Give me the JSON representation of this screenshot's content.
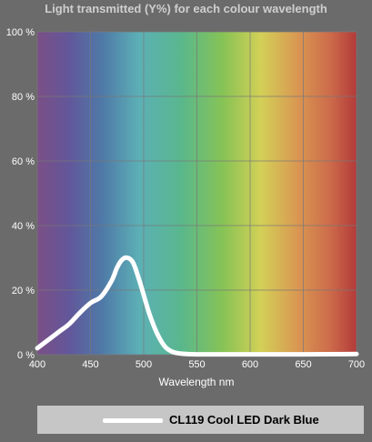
{
  "chart_data": {
    "type": "line",
    "title": "Light transmitted (Y%) for each colour wavelength",
    "xlabel": "Wavelength nm",
    "ylabel": "",
    "xlim": [
      400,
      700
    ],
    "ylim": [
      0,
      100
    ],
    "x_ticks": [
      "400",
      "450",
      "500",
      "550",
      "600",
      "650",
      "700"
    ],
    "y_ticks": [
      "0 %",
      "20 %",
      "40 %",
      "60 %",
      "80 %",
      "100 %"
    ],
    "grid": true,
    "legend_position": "bottom",
    "colors": {
      "background": "#6b6b6b",
      "line": "#ffffff",
      "legend_bg": "#c6c6c6"
    },
    "series": [
      {
        "name": "CL119 Cool LED Dark Blue",
        "x": [
          400,
          410,
          420,
          430,
          440,
          450,
          460,
          470,
          475,
          480,
          485,
          490,
          495,
          500,
          505,
          510,
          515,
          520,
          525,
          530,
          540,
          550,
          560,
          600,
          650,
          700
        ],
        "values": [
          2,
          4.5,
          7,
          9.5,
          13,
          16,
          18,
          23,
          27,
          29.5,
          30,
          28.5,
          24,
          18.5,
          13,
          8.5,
          5,
          2.5,
          1.2,
          0.6,
          0.2,
          0.1,
          0.1,
          0.1,
          0.1,
          0.2
        ]
      }
    ]
  }
}
